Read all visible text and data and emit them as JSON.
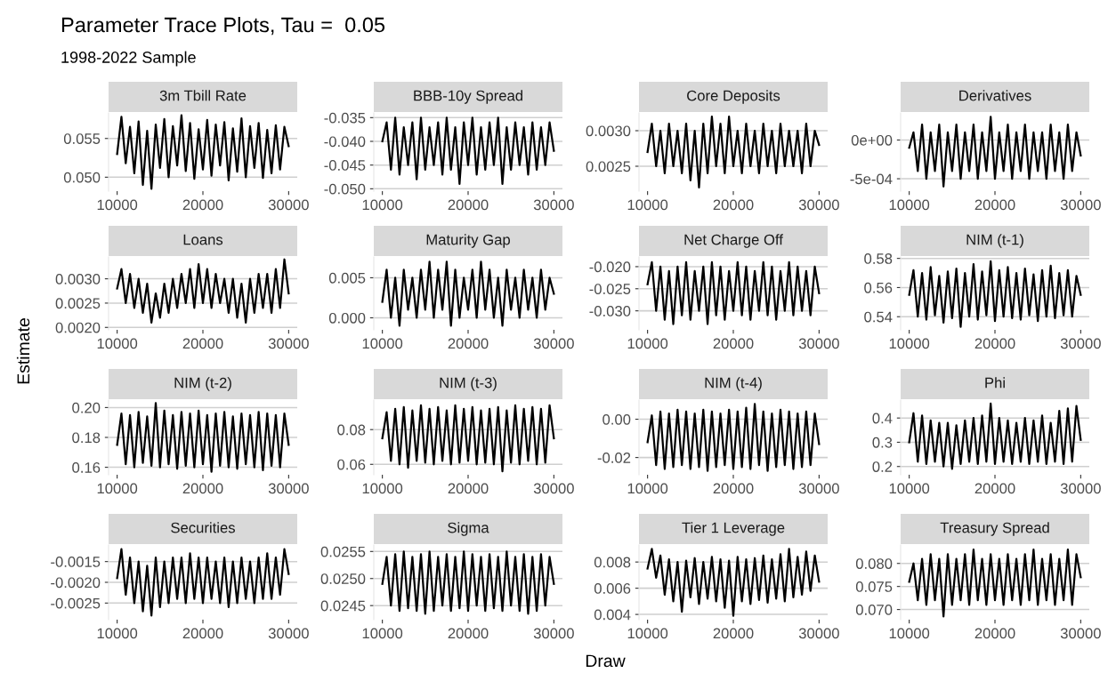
{
  "chart_data": [
    {
      "type": "other",
      "title": "Parameter Trace Plots, Tau =  0.05",
      "subtitle": "1998-2022 Sample",
      "xlabel": "Draw",
      "ylabel": "Estimate"
    },
    {
      "type": "line",
      "title": "3m Tbill Rate",
      "color": "#000000",
      "grid": "y",
      "xlim": [
        9000,
        31000
      ],
      "xticks": [
        10000,
        20000,
        30000
      ],
      "ylim": [
        0.0482,
        0.0583
      ],
      "yticks": [
        {
          "value": 0.05,
          "label": "0.050"
        },
        {
          "value": 0.055,
          "label": "0.055"
        }
      ],
      "x": [
        10000,
        10500,
        11000,
        11500,
        12000,
        12500,
        13000,
        13500,
        14000,
        14500,
        15000,
        15500,
        16000,
        16500,
        17000,
        17500,
        18000,
        18500,
        19000,
        19500,
        20000,
        20500,
        21000,
        21500,
        22000,
        22500,
        23000,
        23500,
        24000,
        24500,
        25000,
        25500,
        26000,
        26500,
        27000,
        27500,
        28000,
        28500,
        29000,
        29500,
        30000
      ],
      "values": [
        0.053,
        0.0578,
        0.0518,
        0.0565,
        0.0505,
        0.0572,
        0.049,
        0.056,
        0.0485,
        0.0568,
        0.0512,
        0.0575,
        0.05,
        0.0566,
        0.0515,
        0.058,
        0.0508,
        0.057,
        0.0498,
        0.0562,
        0.051,
        0.0574,
        0.0502,
        0.0568,
        0.0515,
        0.0571,
        0.0496,
        0.0563,
        0.0507,
        0.0576,
        0.05,
        0.0566,
        0.0512,
        0.057,
        0.0499,
        0.0561,
        0.0505,
        0.0567,
        0.051,
        0.0565,
        0.054
      ]
    },
    {
      "type": "line",
      "title": "BBB-10y Spread",
      "color": "#000000",
      "grid": "y",
      "xlim": [
        9000,
        31000
      ],
      "xticks": [
        10000,
        20000,
        30000
      ],
      "ylim": [
        -0.0505,
        -0.034
      ],
      "yticks": [
        {
          "value": -0.05,
          "label": "-0.050"
        },
        {
          "value": -0.045,
          "label": "-0.045"
        },
        {
          "value": -0.04,
          "label": "-0.040"
        },
        {
          "value": -0.035,
          "label": "-0.035"
        }
      ],
      "x": [
        10000,
        10500,
        11000,
        11500,
        12000,
        12500,
        13000,
        13500,
        14000,
        14500,
        15000,
        15500,
        16000,
        16500,
        17000,
        17500,
        18000,
        18500,
        19000,
        19500,
        20000,
        20500,
        21000,
        21500,
        22000,
        22500,
        23000,
        23500,
        24000,
        24500,
        25000,
        25500,
        26000,
        26500,
        27000,
        27500,
        28000,
        28500,
        29000,
        29500,
        30000
      ],
      "values": [
        -0.04,
        -0.036,
        -0.046,
        -0.035,
        -0.047,
        -0.037,
        -0.045,
        -0.036,
        -0.048,
        -0.035,
        -0.046,
        -0.037,
        -0.045,
        -0.036,
        -0.047,
        -0.035,
        -0.046,
        -0.037,
        -0.049,
        -0.036,
        -0.045,
        -0.035,
        -0.047,
        -0.037,
        -0.046,
        -0.036,
        -0.045,
        -0.035,
        -0.049,
        -0.037,
        -0.046,
        -0.036,
        -0.045,
        -0.037,
        -0.047,
        -0.036,
        -0.046,
        -0.037,
        -0.045,
        -0.036,
        -0.042
      ]
    },
    {
      "type": "line",
      "title": "Core Deposits",
      "color": "#000000",
      "grid": "y",
      "xlim": [
        9000,
        31000
      ],
      "xticks": [
        10000,
        20000,
        30000
      ],
      "ylim": [
        0.00215,
        0.00325
      ],
      "yticks": [
        {
          "value": 0.0025,
          "label": "0.0025"
        },
        {
          "value": 0.003,
          "label": "0.0030"
        }
      ],
      "x": [
        10000,
        10500,
        11000,
        11500,
        12000,
        12500,
        13000,
        13500,
        14000,
        14500,
        15000,
        15500,
        16000,
        16500,
        17000,
        17500,
        18000,
        18500,
        19000,
        19500,
        20000,
        20500,
        21000,
        21500,
        22000,
        22500,
        23000,
        23500,
        24000,
        24500,
        25000,
        25500,
        26000,
        26500,
        27000,
        27500,
        28000,
        28500,
        29000,
        29500,
        30000
      ],
      "values": [
        0.0027,
        0.0031,
        0.0025,
        0.003,
        0.0024,
        0.0031,
        0.0025,
        0.003,
        0.0024,
        0.0031,
        0.0023,
        0.003,
        0.0022,
        0.0031,
        0.0024,
        0.0032,
        0.0025,
        0.0031,
        0.0024,
        0.0032,
        0.0025,
        0.003,
        0.0024,
        0.0031,
        0.0025,
        0.003,
        0.0024,
        0.0031,
        0.0025,
        0.003,
        0.0024,
        0.0031,
        0.0025,
        0.003,
        0.0025,
        0.003,
        0.0024,
        0.0031,
        0.0025,
        0.003,
        0.0028
      ]
    },
    {
      "type": "line",
      "title": "Derivatives",
      "color": "#000000",
      "grid": "y",
      "xlim": [
        9000,
        31000
      ],
      "xticks": [
        10000,
        20000,
        30000
      ],
      "ylim": [
        -0.00066,
        0.00035
      ],
      "yticks": [
        {
          "value": -0.0005,
          "label": "-5e-04"
        },
        {
          "value": 0,
          "label": "0e+00"
        }
      ],
      "x": [
        10000,
        10500,
        11000,
        11500,
        12000,
        12500,
        13000,
        13500,
        14000,
        14500,
        15000,
        15500,
        16000,
        16500,
        17000,
        17500,
        18000,
        18500,
        19000,
        19500,
        20000,
        20500,
        21000,
        21500,
        22000,
        22500,
        23000,
        23500,
        24000,
        24500,
        25000,
        25500,
        26000,
        26500,
        27000,
        27500,
        28000,
        28500,
        29000,
        29500,
        30000
      ],
      "values": [
        -0.0001,
        0.0001,
        -0.0004,
        0.0002,
        -0.0005,
        0.0001,
        -0.0004,
        0.0002,
        -0.0006,
        0.0001,
        -0.0004,
        0.0002,
        -0.0005,
        0.0001,
        -0.0004,
        0.0002,
        -0.0005,
        0.0001,
        -0.0004,
        0.0003,
        -0.0005,
        0.0001,
        -0.0004,
        0.0002,
        -0.0005,
        0.0001,
        -0.0004,
        0.0002,
        -0.0005,
        0.0001,
        -0.0004,
        0.0001,
        -0.0005,
        0.0002,
        -0.0004,
        0.0001,
        -0.0005,
        0.0002,
        -0.0004,
        0.0001,
        -0.0002
      ]
    },
    {
      "type": "line",
      "title": "Loans",
      "color": "#000000",
      "grid": "y",
      "xlim": [
        9000,
        31000
      ],
      "xticks": [
        10000,
        20000,
        30000
      ],
      "ylim": [
        0.00195,
        0.00345
      ],
      "yticks": [
        {
          "value": 0.002,
          "label": "0.0020"
        },
        {
          "value": 0.0025,
          "label": "0.0025"
        },
        {
          "value": 0.003,
          "label": "0.0030"
        }
      ],
      "x": [
        10000,
        10500,
        11000,
        11500,
        12000,
        12500,
        13000,
        13500,
        14000,
        14500,
        15000,
        15500,
        16000,
        16500,
        17000,
        17500,
        18000,
        18500,
        19000,
        19500,
        20000,
        20500,
        21000,
        21500,
        22000,
        22500,
        23000,
        23500,
        24000,
        24500,
        25000,
        25500,
        26000,
        26500,
        27000,
        27500,
        28000,
        28500,
        29000,
        29500,
        30000
      ],
      "values": [
        0.0028,
        0.0032,
        0.0025,
        0.0031,
        0.0024,
        0.003,
        0.0023,
        0.0029,
        0.0021,
        0.0027,
        0.0022,
        0.0029,
        0.0023,
        0.003,
        0.0024,
        0.0031,
        0.0025,
        0.0032,
        0.0024,
        0.0033,
        0.0025,
        0.0032,
        0.0024,
        0.0031,
        0.0025,
        0.003,
        0.0023,
        0.003,
        0.0022,
        0.0029,
        0.0021,
        0.003,
        0.0023,
        0.0031,
        0.0024,
        0.0031,
        0.0023,
        0.0032,
        0.0024,
        0.0034,
        0.0027
      ]
    },
    {
      "type": "line",
      "title": "Maturity Gap",
      "color": "#000000",
      "grid": "y",
      "xlim": [
        9000,
        31000
      ],
      "xticks": [
        10000,
        20000,
        30000
      ],
      "ylim": [
        -0.0015,
        0.0076
      ],
      "yticks": [
        {
          "value": 0,
          "label": "0.000"
        },
        {
          "value": 0.005,
          "label": "0.005"
        }
      ],
      "x": [
        10000,
        10500,
        11000,
        11500,
        12000,
        12500,
        13000,
        13500,
        14000,
        14500,
        15000,
        15500,
        16000,
        16500,
        17000,
        17500,
        18000,
        18500,
        19000,
        19500,
        20000,
        20500,
        21000,
        21500,
        22000,
        22500,
        23000,
        23500,
        24000,
        24500,
        25000,
        25500,
        26000,
        26500,
        27000,
        27500,
        28000,
        28500,
        29000,
        29500,
        30000
      ],
      "values": [
        0.002,
        0.006,
        0.0,
        0.005,
        -0.001,
        0.006,
        0.001,
        0.005,
        0.0,
        0.006,
        0.001,
        0.007,
        0.0,
        0.006,
        0.001,
        0.007,
        -0.001,
        0.006,
        0.0,
        0.005,
        0.001,
        0.006,
        0.0,
        0.007,
        0.001,
        0.006,
        0.0,
        0.005,
        -0.001,
        0.006,
        0.001,
        0.005,
        0.0,
        0.006,
        0.001,
        0.005,
        0.0,
        0.006,
        0.001,
        0.005,
        0.003
      ]
    },
    {
      "type": "line",
      "title": "Net Charge Off",
      "color": "#000000",
      "grid": "y",
      "xlim": [
        9000,
        31000
      ],
      "xticks": [
        10000,
        20000,
        30000
      ],
      "ylim": [
        -0.0343,
        -0.0178
      ],
      "yticks": [
        {
          "value": -0.03,
          "label": "-0.030"
        },
        {
          "value": -0.025,
          "label": "-0.025"
        },
        {
          "value": -0.02,
          "label": "-0.020"
        }
      ],
      "x": [
        10000,
        10500,
        11000,
        11500,
        12000,
        12500,
        13000,
        13500,
        14000,
        14500,
        15000,
        15500,
        16000,
        16500,
        17000,
        17500,
        18000,
        18500,
        19000,
        19500,
        20000,
        20500,
        21000,
        21500,
        22000,
        22500,
        23000,
        23500,
        24000,
        24500,
        25000,
        25500,
        26000,
        26500,
        27000,
        27500,
        28000,
        28500,
        29000,
        29500,
        30000
      ],
      "values": [
        -0.024,
        -0.019,
        -0.03,
        -0.02,
        -0.032,
        -0.021,
        -0.033,
        -0.02,
        -0.031,
        -0.019,
        -0.032,
        -0.021,
        -0.03,
        -0.02,
        -0.033,
        -0.019,
        -0.031,
        -0.02,
        -0.032,
        -0.021,
        -0.03,
        -0.019,
        -0.031,
        -0.02,
        -0.032,
        -0.021,
        -0.03,
        -0.019,
        -0.031,
        -0.02,
        -0.032,
        -0.021,
        -0.03,
        -0.019,
        -0.031,
        -0.02,
        -0.03,
        -0.021,
        -0.031,
        -0.02,
        -0.026
      ]
    },
    {
      "type": "line",
      "title": "NIM (t-1)",
      "color": "#000000",
      "grid": "y",
      "xlim": [
        9000,
        31000
      ],
      "xticks": [
        10000,
        20000,
        30000
      ],
      "ylim": [
        0.531,
        0.581
      ],
      "yticks": [
        {
          "value": 0.54,
          "label": "0.54"
        },
        {
          "value": 0.56,
          "label": "0.56"
        },
        {
          "value": 0.58,
          "label": "0.58"
        }
      ],
      "x": [
        10000,
        10500,
        11000,
        11500,
        12000,
        12500,
        13000,
        13500,
        14000,
        14500,
        15000,
        15500,
        16000,
        16500,
        17000,
        17500,
        18000,
        18500,
        19000,
        19500,
        20000,
        20500,
        21000,
        21500,
        22000,
        22500,
        23000,
        23500,
        24000,
        24500,
        25000,
        25500,
        26000,
        26500,
        27000,
        27500,
        28000,
        28500,
        29000,
        29500,
        30000
      ],
      "values": [
        0.555,
        0.572,
        0.54,
        0.57,
        0.538,
        0.574,
        0.541,
        0.568,
        0.536,
        0.571,
        0.539,
        0.573,
        0.533,
        0.57,
        0.54,
        0.576,
        0.538,
        0.571,
        0.541,
        0.578,
        0.537,
        0.572,
        0.54,
        0.574,
        0.539,
        0.57,
        0.538,
        0.573,
        0.541,
        0.569,
        0.537,
        0.572,
        0.54,
        0.575,
        0.539,
        0.57,
        0.541,
        0.572,
        0.54,
        0.568,
        0.555
      ]
    },
    {
      "type": "line",
      "title": "NIM (t-2)",
      "color": "#000000",
      "grid": "y",
      "xlim": [
        9000,
        31000
      ],
      "xticks": [
        10000,
        20000,
        30000
      ],
      "ylim": [
        0.155,
        0.205
      ],
      "yticks": [
        {
          "value": 0.16,
          "label": "0.16"
        },
        {
          "value": 0.18,
          "label": "0.18"
        },
        {
          "value": 0.2,
          "label": "0.20"
        }
      ],
      "x": [
        10000,
        10500,
        11000,
        11500,
        12000,
        12500,
        13000,
        13500,
        14000,
        14500,
        15000,
        15500,
        16000,
        16500,
        17000,
        17500,
        18000,
        18500,
        19000,
        19500,
        20000,
        20500,
        21000,
        21500,
        22000,
        22500,
        23000,
        23500,
        24000,
        24500,
        25000,
        25500,
        26000,
        26500,
        27000,
        27500,
        28000,
        28500,
        29000,
        29500,
        30000
      ],
      "values": [
        0.175,
        0.196,
        0.162,
        0.195,
        0.16,
        0.197,
        0.163,
        0.194,
        0.161,
        0.203,
        0.16,
        0.198,
        0.162,
        0.195,
        0.159,
        0.197,
        0.161,
        0.196,
        0.16,
        0.198,
        0.162,
        0.195,
        0.157,
        0.196,
        0.161,
        0.197,
        0.16,
        0.194,
        0.159,
        0.196,
        0.162,
        0.195,
        0.16,
        0.197,
        0.158,
        0.196,
        0.161,
        0.195,
        0.16,
        0.196,
        0.175
      ]
    },
    {
      "type": "line",
      "title": "NIM (t-3)",
      "color": "#000000",
      "grid": "y",
      "xlim": [
        9000,
        31000
      ],
      "xticks": [
        10000,
        20000,
        30000
      ],
      "ylim": [
        0.054,
        0.097
      ],
      "yticks": [
        {
          "value": 0.06,
          "label": "0.06"
        },
        {
          "value": 0.08,
          "label": "0.08"
        }
      ],
      "x": [
        10000,
        10500,
        11000,
        11500,
        12000,
        12500,
        13000,
        13500,
        14000,
        14500,
        15000,
        15500,
        16000,
        16500,
        17000,
        17500,
        18000,
        18500,
        19000,
        19500,
        20000,
        20500,
        21000,
        21500,
        22000,
        22500,
        23000,
        23500,
        24000,
        24500,
        25000,
        25500,
        26000,
        26500,
        27000,
        27500,
        28000,
        28500,
        29000,
        29500,
        30000
      ],
      "values": [
        0.075,
        0.09,
        0.062,
        0.092,
        0.06,
        0.093,
        0.058,
        0.091,
        0.062,
        0.094,
        0.061,
        0.092,
        0.06,
        0.093,
        0.062,
        0.091,
        0.06,
        0.094,
        0.061,
        0.092,
        0.062,
        0.093,
        0.06,
        0.091,
        0.061,
        0.092,
        0.06,
        0.093,
        0.056,
        0.091,
        0.061,
        0.094,
        0.06,
        0.092,
        0.062,
        0.093,
        0.06,
        0.092,
        0.061,
        0.094,
        0.075
      ]
    },
    {
      "type": "line",
      "title": "NIM (t-4)",
      "color": "#000000",
      "grid": "y",
      "xlim": [
        9000,
        31000
      ],
      "xticks": [
        10000,
        20000,
        30000
      ],
      "ylim": [
        -0.029,
        0.01
      ],
      "yticks": [
        {
          "value": -0.02,
          "label": "-0.02"
        },
        {
          "value": 0,
          "label": "0.00"
        }
      ],
      "x": [
        10000,
        10500,
        11000,
        11500,
        12000,
        12500,
        13000,
        13500,
        14000,
        14500,
        15000,
        15500,
        16000,
        16500,
        17000,
        17500,
        18000,
        18500,
        19000,
        19500,
        20000,
        20500,
        21000,
        21500,
        22000,
        22500,
        23000,
        23500,
        24000,
        24500,
        25000,
        25500,
        26000,
        26500,
        27000,
        27500,
        28000,
        28500,
        29000,
        29500,
        30000
      ],
      "values": [
        -0.012,
        0.002,
        -0.024,
        0.004,
        -0.026,
        0.003,
        -0.025,
        0.005,
        -0.024,
        0.004,
        -0.026,
        0.003,
        -0.025,
        0.005,
        -0.027,
        0.004,
        -0.025,
        0.003,
        -0.024,
        0.005,
        -0.026,
        0.004,
        -0.025,
        0.006,
        -0.026,
        0.008,
        -0.024,
        0.004,
        -0.027,
        0.003,
        -0.025,
        0.005,
        -0.024,
        0.004,
        -0.026,
        0.003,
        -0.025,
        0.004,
        -0.024,
        0.003,
        -0.013
      ]
    },
    {
      "type": "line",
      "title": "Phi",
      "color": "#000000",
      "grid": "y",
      "xlim": [
        9000,
        31000
      ],
      "xticks": [
        10000,
        20000,
        30000
      ],
      "ylim": [
        0.166,
        0.474
      ],
      "yticks": [
        {
          "value": 0.2,
          "label": "0.2"
        },
        {
          "value": 0.3,
          "label": "0.3"
        },
        {
          "value": 0.4,
          "label": "0.4"
        }
      ],
      "x": [
        10000,
        10500,
        11000,
        11500,
        12000,
        12500,
        13000,
        13500,
        14000,
        14500,
        15000,
        15500,
        16000,
        16500,
        17000,
        17500,
        18000,
        18500,
        19000,
        19500,
        20000,
        20500,
        21000,
        21500,
        22000,
        22500,
        23000,
        23500,
        24000,
        24500,
        25000,
        25500,
        26000,
        26500,
        27000,
        27500,
        28000,
        28500,
        29000,
        29500,
        30000
      ],
      "values": [
        0.3,
        0.42,
        0.22,
        0.41,
        0.21,
        0.39,
        0.22,
        0.38,
        0.2,
        0.38,
        0.19,
        0.37,
        0.21,
        0.39,
        0.22,
        0.4,
        0.21,
        0.41,
        0.22,
        0.46,
        0.21,
        0.4,
        0.22,
        0.39,
        0.21,
        0.38,
        0.22,
        0.4,
        0.21,
        0.39,
        0.22,
        0.41,
        0.21,
        0.38,
        0.22,
        0.43,
        0.21,
        0.44,
        0.22,
        0.45,
        0.31
      ]
    },
    {
      "type": "line",
      "title": "Securities",
      "color": "#000000",
      "grid": "y",
      "xlim": [
        9000,
        31000
      ],
      "xticks": [
        10000,
        20000,
        30000
      ],
      "ylim": [
        -0.0029,
        -0.0011
      ],
      "yticks": [
        {
          "value": -0.0025,
          "label": "-0.0025"
        },
        {
          "value": -0.002,
          "label": "-0.0020"
        },
        {
          "value": -0.0015,
          "label": "-0.0015"
        }
      ],
      "x": [
        10000,
        10500,
        11000,
        11500,
        12000,
        12500,
        13000,
        13500,
        14000,
        14500,
        15000,
        15500,
        16000,
        16500,
        17000,
        17500,
        18000,
        18500,
        19000,
        19500,
        20000,
        20500,
        21000,
        21500,
        22000,
        22500,
        23000,
        23500,
        24000,
        24500,
        25000,
        25500,
        26000,
        26500,
        27000,
        27500,
        28000,
        28500,
        29000,
        29500,
        30000
      ],
      "values": [
        -0.0019,
        -0.0012,
        -0.0023,
        -0.0014,
        -0.0025,
        -0.0015,
        -0.0027,
        -0.0016,
        -0.0028,
        -0.0014,
        -0.0026,
        -0.0015,
        -0.0025,
        -0.0014,
        -0.0024,
        -0.0014,
        -0.0025,
        -0.0013,
        -0.0024,
        -0.0014,
        -0.0025,
        -0.0014,
        -0.0024,
        -0.0015,
        -0.0025,
        -0.0014,
        -0.0026,
        -0.0015,
        -0.0025,
        -0.0014,
        -0.0024,
        -0.0015,
        -0.0025,
        -0.0014,
        -0.0024,
        -0.0013,
        -0.0024,
        -0.0014,
        -0.0023,
        -0.0012,
        -0.0018
      ]
    },
    {
      "type": "line",
      "title": "Sigma",
      "color": "#000000",
      "grid": "y",
      "xlim": [
        9000,
        31000
      ],
      "xticks": [
        10000,
        20000,
        30000
      ],
      "ylim": [
        0.02424,
        0.02562
      ],
      "yticks": [
        {
          "value": 0.0245,
          "label": "0.0245"
        },
        {
          "value": 0.025,
          "label": "0.0250"
        },
        {
          "value": 0.0255,
          "label": "0.0255"
        }
      ],
      "x": [
        10000,
        10500,
        11000,
        11500,
        12000,
        12500,
        13000,
        13500,
        14000,
        14500,
        15000,
        15500,
        16000,
        16500,
        17000,
        17500,
        18000,
        18500,
        19000,
        19500,
        20000,
        20500,
        21000,
        21500,
        22000,
        22500,
        23000,
        23500,
        24000,
        24500,
        25000,
        25500,
        26000,
        26500,
        27000,
        27500,
        28000,
        28500,
        29000,
        29500,
        30000
      ],
      "values": [
        0.0249,
        0.0254,
        0.0245,
        0.02545,
        0.0244,
        0.0255,
        0.02445,
        0.0254,
        0.0244,
        0.02545,
        0.02435,
        0.0255,
        0.0244,
        0.0254,
        0.0245,
        0.02545,
        0.0244,
        0.0254,
        0.02445,
        0.0255,
        0.0244,
        0.02545,
        0.0245,
        0.0254,
        0.0244,
        0.02545,
        0.02445,
        0.0254,
        0.0244,
        0.0255,
        0.0245,
        0.0254,
        0.0244,
        0.02545,
        0.02435,
        0.0254,
        0.0244,
        0.02545,
        0.0245,
        0.0254,
        0.0249
      ]
    },
    {
      "type": "line",
      "title": "Tier 1 Leverage",
      "color": "#000000",
      "grid": "y",
      "xlim": [
        9000,
        31000
      ],
      "xticks": [
        10000,
        20000,
        30000
      ],
      "ylim": [
        0.0036,
        0.0093
      ],
      "yticks": [
        {
          "value": 0.004,
          "label": "0.004"
        },
        {
          "value": 0.006,
          "label": "0.006"
        },
        {
          "value": 0.008,
          "label": "0.008"
        }
      ],
      "x": [
        10000,
        10500,
        11000,
        11500,
        12000,
        12500,
        13000,
        13500,
        14000,
        14500,
        15000,
        15500,
        16000,
        16500,
        17000,
        17500,
        18000,
        18500,
        19000,
        19500,
        20000,
        20500,
        21000,
        21500,
        22000,
        22500,
        23000,
        23500,
        24000,
        24500,
        25000,
        25500,
        26000,
        26500,
        27000,
        27500,
        28000,
        28500,
        29000,
        29500,
        30000
      ],
      "values": [
        0.0075,
        0.009,
        0.0068,
        0.0085,
        0.0055,
        0.0082,
        0.005,
        0.008,
        0.0042,
        0.0081,
        0.0053,
        0.0083,
        0.0048,
        0.008,
        0.0052,
        0.0084,
        0.005,
        0.0082,
        0.0045,
        0.0081,
        0.0039,
        0.0084,
        0.005,
        0.0082,
        0.0048,
        0.0083,
        0.0051,
        0.0085,
        0.0049,
        0.0082,
        0.0052,
        0.0086,
        0.005,
        0.009,
        0.0053,
        0.0084,
        0.0055,
        0.0088,
        0.0058,
        0.0085,
        0.0065
      ]
    },
    {
      "type": "line",
      "title": "Treasury Spread",
      "color": "#000000",
      "grid": "y",
      "xlim": [
        9000,
        31000
      ],
      "xticks": [
        10000,
        20000,
        30000
      ],
      "ylim": [
        0.0678,
        0.084
      ],
      "yticks": [
        {
          "value": 0.07,
          "label": "0.070"
        },
        {
          "value": 0.075,
          "label": "0.075"
        },
        {
          "value": 0.08,
          "label": "0.080"
        }
      ],
      "x": [
        10000,
        10500,
        11000,
        11500,
        12000,
        12500,
        13000,
        13500,
        14000,
        14500,
        15000,
        15500,
        16000,
        16500,
        17000,
        17500,
        18000,
        18500,
        19000,
        19500,
        20000,
        20500,
        21000,
        21500,
        22000,
        22500,
        23000,
        23500,
        24000,
        24500,
        25000,
        25500,
        26000,
        26500,
        27000,
        27500,
        28000,
        28500,
        29000,
        29500,
        30000
      ],
      "values": [
        0.076,
        0.08,
        0.072,
        0.081,
        0.071,
        0.082,
        0.072,
        0.081,
        0.0685,
        0.082,
        0.071,
        0.081,
        0.072,
        0.082,
        0.071,
        0.083,
        0.072,
        0.081,
        0.071,
        0.082,
        0.072,
        0.081,
        0.071,
        0.082,
        0.072,
        0.081,
        0.071,
        0.082,
        0.072,
        0.083,
        0.071,
        0.081,
        0.072,
        0.082,
        0.071,
        0.081,
        0.072,
        0.083,
        0.071,
        0.082,
        0.077
      ]
    }
  ]
}
